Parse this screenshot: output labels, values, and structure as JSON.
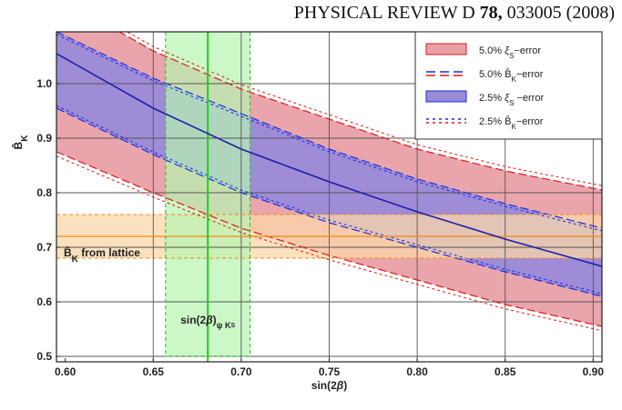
{
  "header": {
    "journal": "PHYSICAL REVIEW D",
    "volume": "78,",
    "pages": "033005 (2008)"
  },
  "chart_data": {
    "type": "area",
    "xlabel": "sin(2β)",
    "ylabel": "B̂K",
    "xlim": [
      0.595,
      0.905
    ],
    "ylim": [
      0.49,
      1.095
    ],
    "xticks": [
      "0.60",
      "0.65",
      "0.70",
      "0.75",
      "0.80",
      "0.85",
      "0.90"
    ],
    "yticks": [
      "0.5",
      "0.6",
      "0.7",
      "0.8",
      "0.9",
      "1.0"
    ],
    "grid": true,
    "legend_position": "top-right",
    "legend": [
      {
        "label": "5.0% ξs−error",
        "style": "fill-red"
      },
      {
        "label": "5.0% B̂K−error",
        "style": "dash-blue-red"
      },
      {
        "label": "2.5% ξs −error",
        "style": "fill-blue"
      },
      {
        "label": "2.5% B̂K−error",
        "style": "dot-blue-red"
      }
    ],
    "x": [
      0.595,
      0.65,
      0.7,
      0.75,
      0.8,
      0.85,
      0.905
    ],
    "central": [
      1.055,
      0.955,
      0.88,
      0.82,
      0.765,
      0.715,
      0.665
    ],
    "band_5pct_upper": [
      1.16,
      1.06,
      0.99,
      0.935,
      0.88,
      0.84,
      0.805
    ],
    "band_5pct_lower": [
      0.875,
      0.8,
      0.735,
      0.685,
      0.64,
      0.595,
      0.555
    ],
    "band_2_5pct_upper": [
      1.095,
      1.01,
      0.945,
      0.88,
      0.825,
      0.78,
      0.735
    ],
    "band_2_5pct_lower": [
      0.955,
      0.87,
      0.8,
      0.745,
      0.7,
      0.655,
      0.61
    ],
    "lattice": {
      "label": "B̂K from lattice",
      "central": 0.72,
      "low": 0.68,
      "high": 0.76
    },
    "sin2beta_psiKs": {
      "label": "sin(2β)ψ KS",
      "central": 0.681,
      "low": 0.657,
      "high": 0.705,
      "ymax": 1.095,
      "ymin": 0.5
    },
    "colors": {
      "red_band": "#e8a0a6",
      "blue_band": "#9a8ad8",
      "green_band": "#b6f5b0",
      "orange_band": "#fbd7a8",
      "central_line": "#1b1fa8",
      "green_line": "#22cc22",
      "orange_line": "#f08a1a",
      "red_dash": "#e01818",
      "blue_dash": "#1a2ce0"
    }
  }
}
